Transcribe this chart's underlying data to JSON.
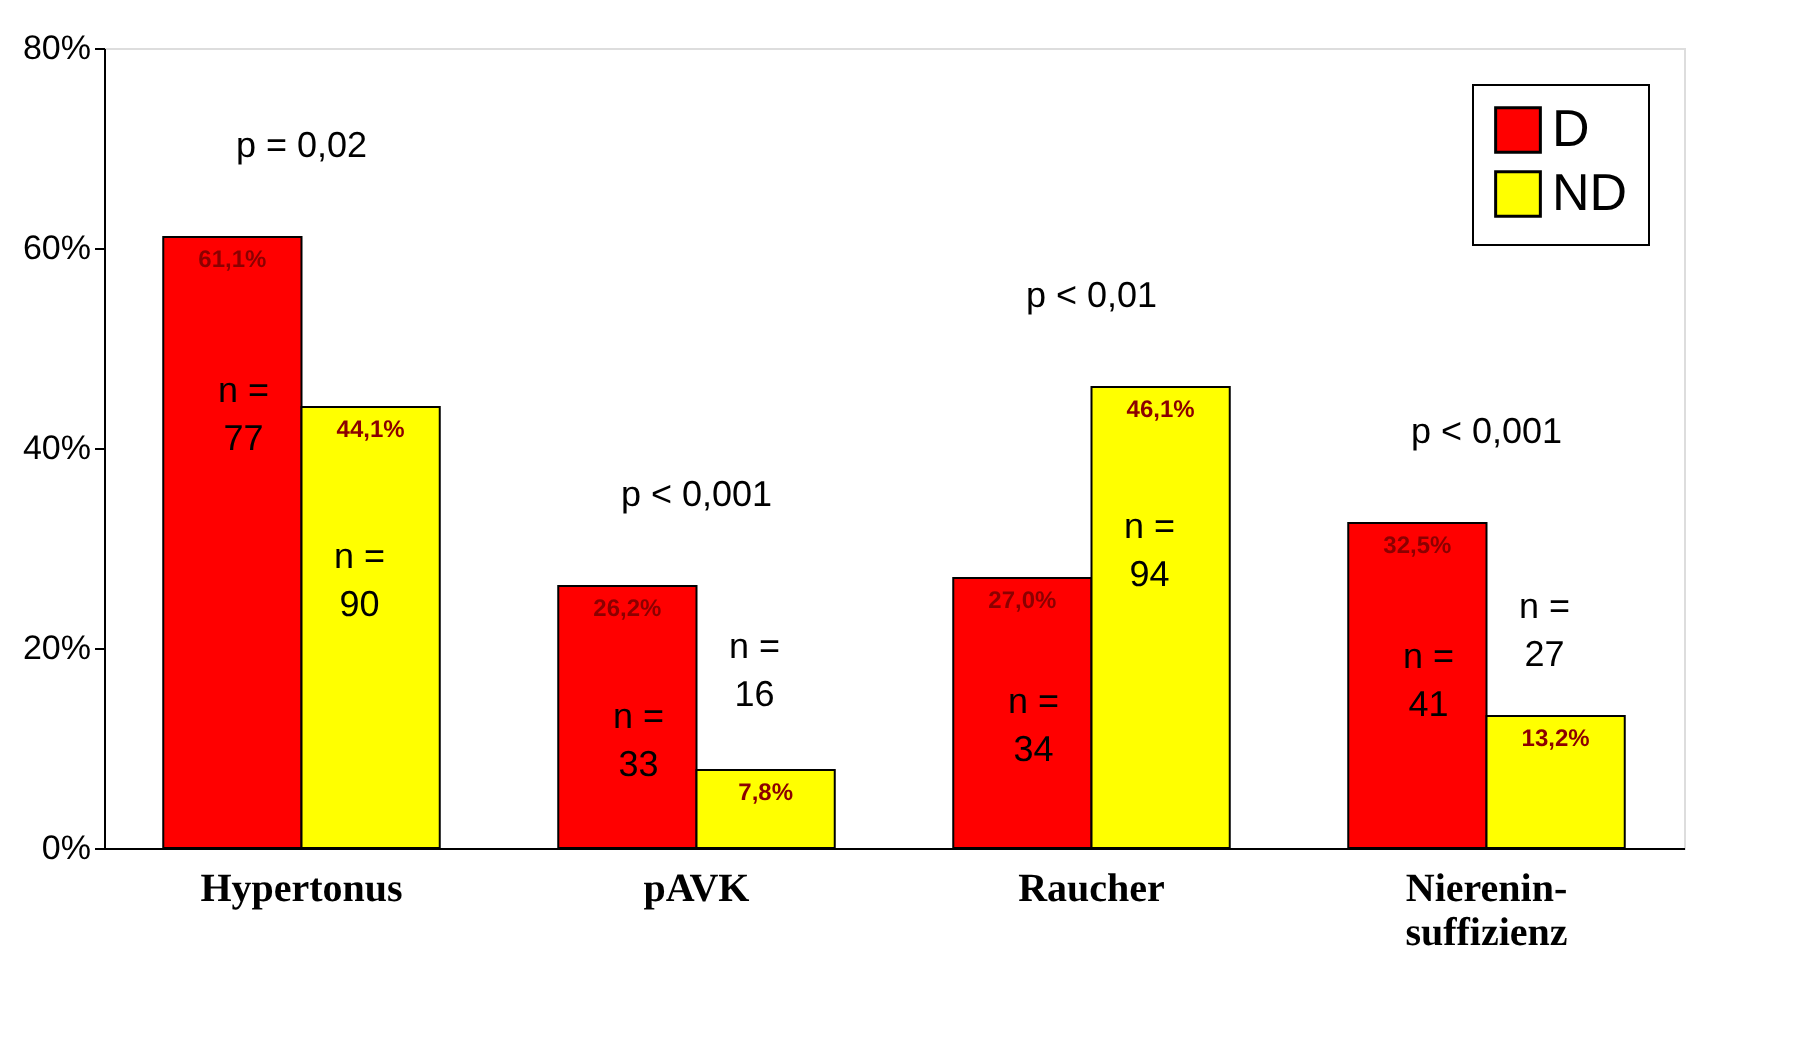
{
  "chart_data": {
    "type": "bar",
    "categories": [
      "Hypertonus",
      "pAVK",
      "Raucher",
      "Nierenin-\nsuffizienz"
    ],
    "series": [
      {
        "name": "D",
        "color": "#ff0000",
        "values": [
          61.1,
          26.2,
          27.0,
          32.5
        ],
        "value_labels": [
          "61,1%",
          "26,2%",
          "27,0%",
          "32,5%"
        ]
      },
      {
        "name": "ND",
        "color": "#ffff00",
        "values": [
          44.1,
          7.8,
          46.1,
          13.2
        ],
        "value_labels": [
          "44,1%",
          "7,8%",
          "46,1%",
          "13,2%"
        ]
      }
    ],
    "ylim": [
      0,
      80
    ],
    "yticks": [
      {
        "value": 0,
        "label": "0%"
      },
      {
        "value": 20,
        "label": "20%"
      },
      {
        "value": 40,
        "label": "40%"
      },
      {
        "value": 60,
        "label": "60%"
      },
      {
        "value": 80,
        "label": "80%"
      }
    ],
    "annotations": [
      "p = 0,02",
      "p < 0,001",
      "p < 0,01",
      "p < 0,001",
      {
        "text": "n =\n77",
        "x": "Hypertonus",
        "y": 45.6
      },
      {
        "text": "n =\n90",
        "x": "Hypertonus",
        "y": 29
      },
      {
        "text": "n =\n33",
        "x": "pAVK",
        "y": 13
      },
      {
        "text": "n =\n16",
        "x": "pAVK",
        "y": 20
      },
      {
        "text": "n =\n34",
        "x": "Raucher",
        "y": 14.5
      },
      {
        "text": "n =\n94",
        "x": "Raucher",
        "y": 32
      },
      {
        "text": "n =\n41",
        "x": "Nierenin-\nsuffizienz",
        "y": 19
      },
      {
        "text": "n =\n27",
        "x": "Nierenin-\nsuffizienz",
        "y": 24
      }
    ],
    "grid": false,
    "legend": "top right"
  }
}
